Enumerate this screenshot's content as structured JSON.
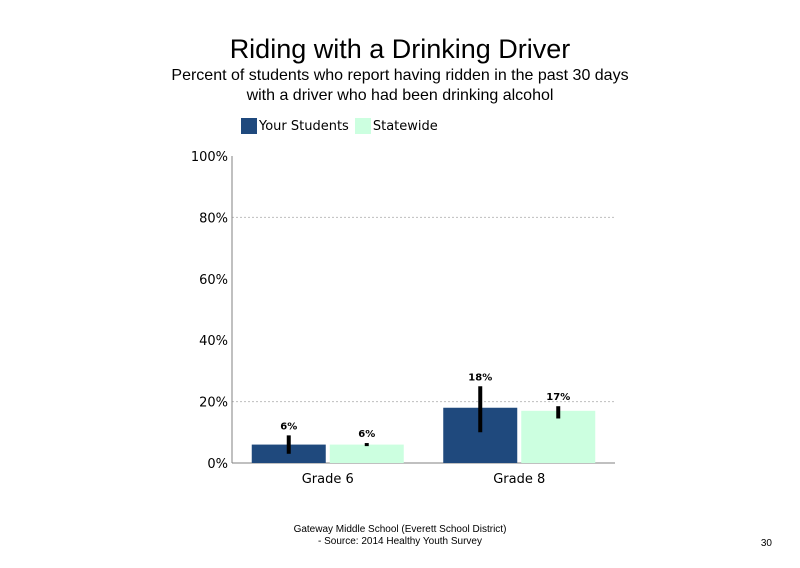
{
  "colors": {
    "your_students": "#1f497d",
    "statewide": "#ccffe0",
    "grid": "#bfbfbf",
    "axis": "#808080",
    "error_bar": "#000000"
  },
  "chart_data": {
    "type": "bar",
    "title": "Riding with a Drinking Driver",
    "subtitle": "Percent of students who report having ridden in the past 30 days with a driver who had been drinking alcohol",
    "categories": [
      "Grade 6",
      "Grade 8"
    ],
    "series": [
      {
        "name": "Your Students",
        "values": [
          6,
          18
        ],
        "labels": [
          "6%",
          "18%"
        ],
        "error_low": [
          3,
          10
        ],
        "error_high": [
          9,
          25
        ]
      },
      {
        "name": "Statewide",
        "values": [
          6,
          17
        ],
        "labels": [
          "6%",
          "17%"
        ],
        "error_low": [
          5.5,
          14.5
        ],
        "error_high": [
          6.5,
          18.5
        ]
      }
    ],
    "ylim": [
      0,
      100
    ],
    "yticks": [
      0,
      20,
      40,
      60,
      80,
      100
    ],
    "ytick_labels": [
      "0%",
      "20%",
      "40%",
      "60%",
      "80%",
      "100%"
    ],
    "gridlines_at": [
      20,
      80
    ],
    "xlabel": "",
    "ylabel": "",
    "legend_position": "top-left"
  },
  "footer": {
    "line1": "Gateway Middle  School  (Everett School District)",
    "line2": "- Source:  2014 Healthy  Youth Survey"
  },
  "page_number": "30"
}
